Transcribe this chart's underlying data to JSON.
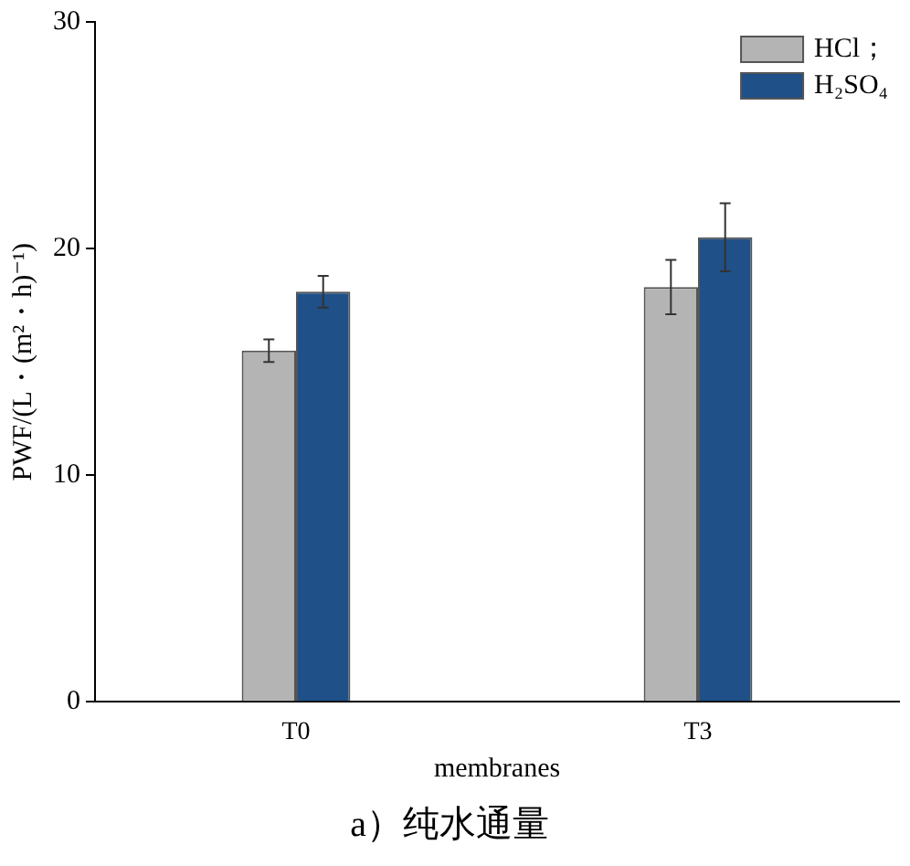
{
  "chart_data": {
    "type": "bar",
    "title": "a）纯水通量",
    "xlabel": "membranes",
    "ylabel": "PWF/(L・(m²・h)⁻¹)",
    "categories": [
      "T0",
      "T3"
    ],
    "series": [
      {
        "name": "HCl；",
        "color": "#b4b4b4",
        "values": [
          15.5,
          18.3
        ],
        "errors": [
          0.5,
          1.2
        ]
      },
      {
        "name": "H₂SO₄",
        "color": "#1f5088",
        "values": [
          18.1,
          20.5
        ],
        "errors": [
          0.7,
          1.5
        ]
      }
    ],
    "ylim": [
      0,
      30
    ],
    "yticks": [
      0,
      10,
      20,
      30
    ],
    "grid": false,
    "legend": "top right"
  }
}
